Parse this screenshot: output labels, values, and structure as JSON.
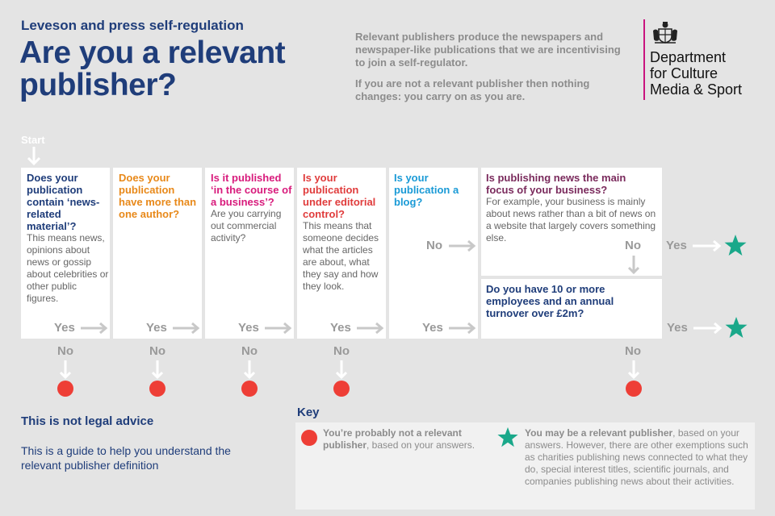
{
  "header": {
    "kicker": "Leveson and press self-regulation",
    "title": "Are you a relevant publisher?",
    "intro_1": "Relevant publishers produce the newspapers and newspaper-like publications that we are incentivising to join a self-regulator.",
    "intro_2": "If you are not a relevant publisher then nothing changes: you carry on as you are."
  },
  "logo": {
    "line1": "Department",
    "line2": "for Culture",
    "line3": "Media & Sport"
  },
  "flow": {
    "start_label": "Start",
    "yes_label": "Yes",
    "no_label": "No",
    "questions": [
      {
        "question": "Does your publication contain ‘news-related material’?",
        "detail": "This means news, opinions about news or gossip about celebrities or other public figures.",
        "color": "#1f3d7a"
      },
      {
        "question": "Does your publication have more than one author?",
        "detail": "",
        "color": "#e8891a"
      },
      {
        "question": "Is it published ‘in the course of a business’?",
        "detail": "Are you carrying out commercial activity?",
        "color": "#d81b7c"
      },
      {
        "question": "Is your publication under editorial control?",
        "detail": "This means that someone decides what the articles are about, what they say and how they look.",
        "color": "#e03c3c"
      },
      {
        "question": "Is your publication a blog?",
        "detail": "",
        "color": "#1a9ad6"
      },
      {
        "question": "Is publishing news the main focus of your business?",
        "detail": "For example, your business is mainly about news rather than a bit of news on a website that largely covers something else.",
        "color": "#7a2a5c"
      },
      {
        "question": "Do you have 10 or more employees and an annual turnover over £2m?",
        "detail": "",
        "color": "#1f3d7a"
      }
    ]
  },
  "disclaimer": {
    "title": "This is not legal advice",
    "body": "This is a guide to help you understand the relevant publisher definition"
  },
  "key": {
    "title": "Key",
    "red_bold": "You’re probably not a relevant publisher",
    "red_rest": ", based on your answers.",
    "green_bold": "You may be a relevant publisher",
    "green_rest": ", based on your answers. However, there are other exemptions such as charities publishing news connected to what they do, special interest titles, scientific journals, and companies publishing news about their activities."
  },
  "colors": {
    "navy": "#1f3d7a",
    "red": "#ee3e36",
    "green": "#1aa88a",
    "grey_arrow": "#c8c8c8"
  },
  "icons": {
    "outcome_no": "red-circle",
    "outcome_yes": "green-star",
    "crest": "royal-crest-icon"
  }
}
